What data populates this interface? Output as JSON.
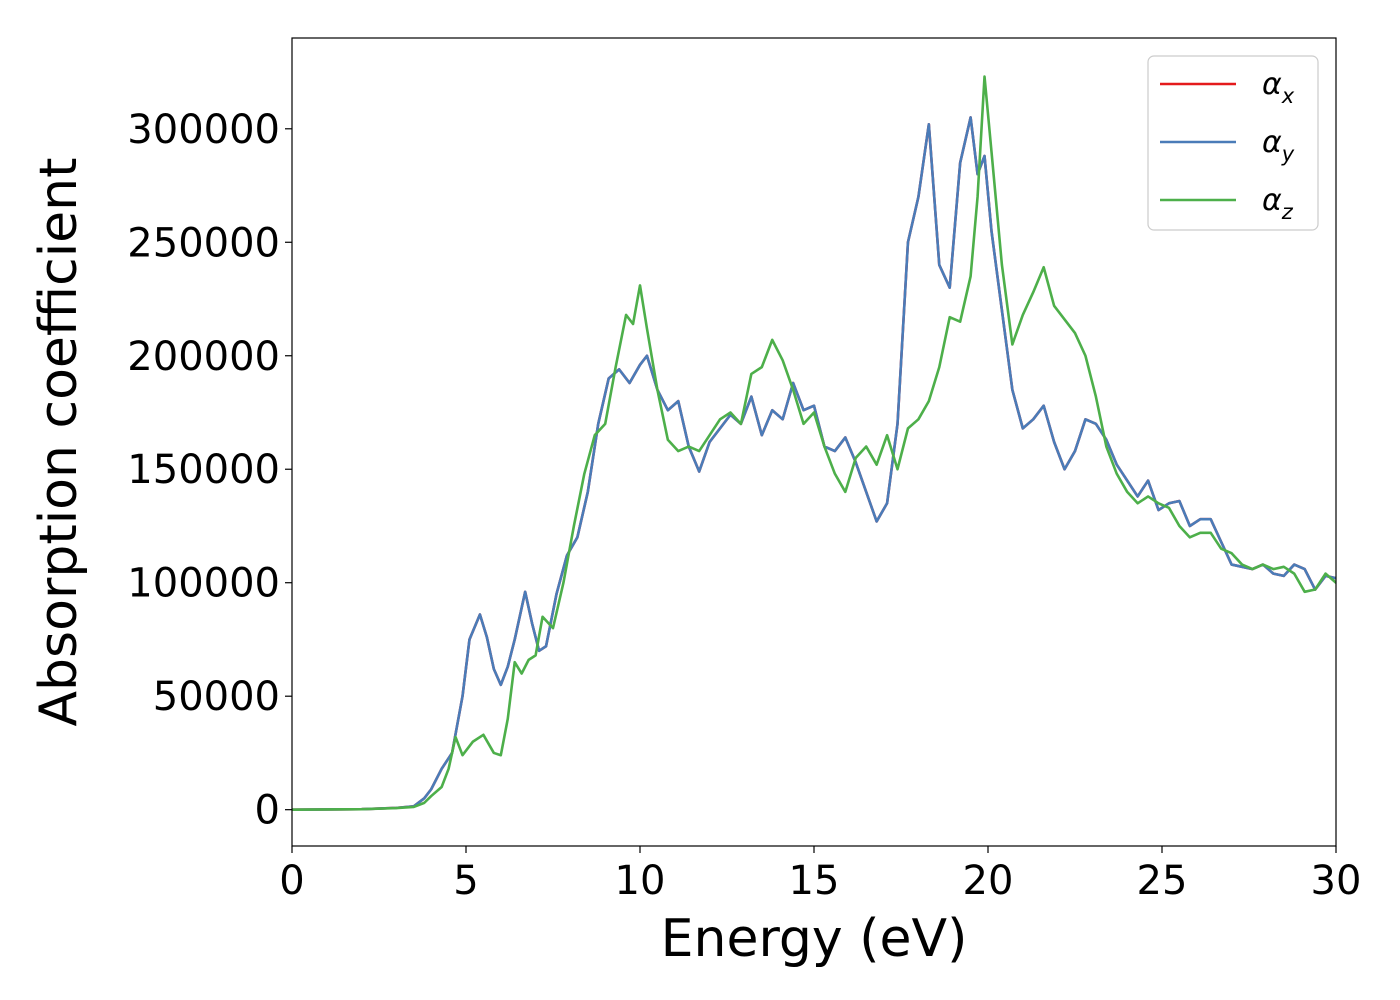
{
  "chart_data": {
    "type": "line",
    "xlabel": "Energy (eV)",
    "ylabel": "Absorption coefficient",
    "xlim": [
      0,
      30
    ],
    "ylim": [
      -16000,
      340000
    ],
    "xticks": [
      0,
      5,
      10,
      15,
      20,
      25,
      30
    ],
    "yticks": [
      0,
      50000,
      100000,
      150000,
      200000,
      250000,
      300000
    ],
    "grid": false,
    "legend_position": "top-right",
    "series": [
      {
        "name": "α_x",
        "label_base": "α",
        "label_sub": "x",
        "color": "#e41a1c",
        "x": [
          0,
          2,
          3,
          3.5,
          3.8,
          4.0,
          4.3,
          4.6,
          4.9,
          5.1,
          5.4,
          5.6,
          5.8,
          6.0,
          6.2,
          6.4,
          6.7,
          6.9,
          7.1,
          7.3,
          7.6,
          7.9,
          8.2,
          8.5,
          8.8,
          9.1,
          9.4,
          9.7,
          10.0,
          10.2,
          10.5,
          10.8,
          11.1,
          11.4,
          11.7,
          12.0,
          12.3,
          12.6,
          12.9,
          13.2,
          13.5,
          13.8,
          14.1,
          14.4,
          14.7,
          15.0,
          15.3,
          15.6,
          15.9,
          16.2,
          16.5,
          16.8,
          17.1,
          17.4,
          17.7,
          18.0,
          18.3,
          18.6,
          18.9,
          19.2,
          19.5,
          19.7,
          19.9,
          20.1,
          20.4,
          20.7,
          21.0,
          21.3,
          21.6,
          21.9,
          22.2,
          22.5,
          22.8,
          23.1,
          23.4,
          23.7,
          24.0,
          24.3,
          24.6,
          24.9,
          25.2,
          25.5,
          25.8,
          26.1,
          26.4,
          26.7,
          27.0,
          27.3,
          27.6,
          27.9,
          28.2,
          28.5,
          28.8,
          29.1,
          29.4,
          29.7,
          30.0
        ],
        "y": [
          0,
          200,
          800,
          1500,
          5000,
          9000,
          18000,
          25000,
          50000,
          75000,
          86000,
          76000,
          62000,
          55000,
          63000,
          75000,
          96000,
          82000,
          70000,
          72000,
          95000,
          112000,
          120000,
          140000,
          170000,
          190000,
          194000,
          188000,
          196000,
          200000,
          185000,
          176000,
          180000,
          160000,
          149000,
          162000,
          168000,
          174000,
          170000,
          182000,
          165000,
          176000,
          172000,
          188000,
          176000,
          178000,
          160000,
          158000,
          164000,
          153000,
          140000,
          127000,
          135000,
          170000,
          250000,
          270000,
          302000,
          240000,
          230000,
          285000,
          305000,
          280000,
          288000,
          255000,
          220000,
          185000,
          168000,
          172000,
          178000,
          162000,
          150000,
          158000,
          172000,
          170000,
          163000,
          152000,
          145000,
          138000,
          145000,
          132000,
          135000,
          136000,
          125000,
          128000,
          128000,
          118000,
          108000,
          107000,
          106000,
          108000,
          104000,
          103000,
          108000,
          106000,
          97000,
          103000,
          102000
        ]
      },
      {
        "name": "α_y",
        "label_base": "α",
        "label_sub": "y",
        "color": "#4a7cb8",
        "x": [
          0,
          2,
          3,
          3.5,
          3.8,
          4.0,
          4.3,
          4.6,
          4.9,
          5.1,
          5.4,
          5.6,
          5.8,
          6.0,
          6.2,
          6.4,
          6.7,
          6.9,
          7.1,
          7.3,
          7.6,
          7.9,
          8.2,
          8.5,
          8.8,
          9.1,
          9.4,
          9.7,
          10.0,
          10.2,
          10.5,
          10.8,
          11.1,
          11.4,
          11.7,
          12.0,
          12.3,
          12.6,
          12.9,
          13.2,
          13.5,
          13.8,
          14.1,
          14.4,
          14.7,
          15.0,
          15.3,
          15.6,
          15.9,
          16.2,
          16.5,
          16.8,
          17.1,
          17.4,
          17.7,
          18.0,
          18.3,
          18.6,
          18.9,
          19.2,
          19.5,
          19.7,
          19.9,
          20.1,
          20.4,
          20.7,
          21.0,
          21.3,
          21.6,
          21.9,
          22.2,
          22.5,
          22.8,
          23.1,
          23.4,
          23.7,
          24.0,
          24.3,
          24.6,
          24.9,
          25.2,
          25.5,
          25.8,
          26.1,
          26.4,
          26.7,
          27.0,
          27.3,
          27.6,
          27.9,
          28.2,
          28.5,
          28.8,
          29.1,
          29.4,
          29.7,
          30.0
        ],
        "y": [
          0,
          200,
          800,
          1500,
          5000,
          9000,
          18000,
          25000,
          50000,
          75000,
          86000,
          76000,
          62000,
          55000,
          63000,
          75000,
          96000,
          82000,
          70000,
          72000,
          95000,
          112000,
          120000,
          140000,
          170000,
          190000,
          194000,
          188000,
          196000,
          200000,
          185000,
          176000,
          180000,
          160000,
          149000,
          162000,
          168000,
          174000,
          170000,
          182000,
          165000,
          176000,
          172000,
          188000,
          176000,
          178000,
          160000,
          158000,
          164000,
          153000,
          140000,
          127000,
          135000,
          170000,
          250000,
          270000,
          302000,
          240000,
          230000,
          285000,
          305000,
          280000,
          288000,
          255000,
          220000,
          185000,
          168000,
          172000,
          178000,
          162000,
          150000,
          158000,
          172000,
          170000,
          163000,
          152000,
          145000,
          138000,
          145000,
          132000,
          135000,
          136000,
          125000,
          128000,
          128000,
          118000,
          108000,
          107000,
          106000,
          108000,
          104000,
          103000,
          108000,
          106000,
          97000,
          103000,
          102000
        ]
      },
      {
        "name": "α_z",
        "label_base": "α",
        "label_sub": "z",
        "color": "#4daf4a",
        "x": [
          0,
          2,
          3,
          3.5,
          3.8,
          4.0,
          4.3,
          4.5,
          4.7,
          4.9,
          5.2,
          5.5,
          5.8,
          6.0,
          6.2,
          6.4,
          6.6,
          6.8,
          7.0,
          7.2,
          7.5,
          7.8,
          8.1,
          8.4,
          8.7,
          9.0,
          9.3,
          9.6,
          9.8,
          10.0,
          10.2,
          10.5,
          10.8,
          11.1,
          11.4,
          11.7,
          12.0,
          12.3,
          12.6,
          12.9,
          13.2,
          13.5,
          13.8,
          14.1,
          14.4,
          14.7,
          15.0,
          15.3,
          15.6,
          15.9,
          16.2,
          16.5,
          16.8,
          17.1,
          17.4,
          17.7,
          18.0,
          18.3,
          18.6,
          18.9,
          19.2,
          19.5,
          19.7,
          19.9,
          20.1,
          20.4,
          20.7,
          21.0,
          21.3,
          21.6,
          21.9,
          22.2,
          22.5,
          22.8,
          23.1,
          23.4,
          23.7,
          24.0,
          24.3,
          24.6,
          24.9,
          25.2,
          25.5,
          25.8,
          26.1,
          26.4,
          26.7,
          27.0,
          27.3,
          27.6,
          27.9,
          28.2,
          28.5,
          28.8,
          29.1,
          29.4,
          29.7,
          30.0
        ],
        "y": [
          0,
          200,
          700,
          1200,
          3000,
          6000,
          10000,
          18000,
          32000,
          24000,
          30000,
          33000,
          25000,
          24000,
          40000,
          65000,
          60000,
          66000,
          68000,
          85000,
          80000,
          100000,
          125000,
          148000,
          165000,
          170000,
          195000,
          218000,
          214000,
          231000,
          212000,
          185000,
          163000,
          158000,
          160000,
          158000,
          165000,
          172000,
          175000,
          170000,
          192000,
          195000,
          207000,
          198000,
          185000,
          170000,
          175000,
          160000,
          148000,
          140000,
          155000,
          160000,
          152000,
          165000,
          150000,
          168000,
          172000,
          180000,
          195000,
          217000,
          215000,
          235000,
          270000,
          323000,
          290000,
          240000,
          205000,
          218000,
          228000,
          239000,
          222000,
          216000,
          210000,
          200000,
          182000,
          160000,
          148000,
          140000,
          135000,
          138000,
          135000,
          133000,
          125000,
          120000,
          122000,
          122000,
          115000,
          113000,
          108000,
          106000,
          108000,
          106000,
          107000,
          104000,
          96000,
          97000,
          104000,
          100000
        ]
      }
    ]
  }
}
